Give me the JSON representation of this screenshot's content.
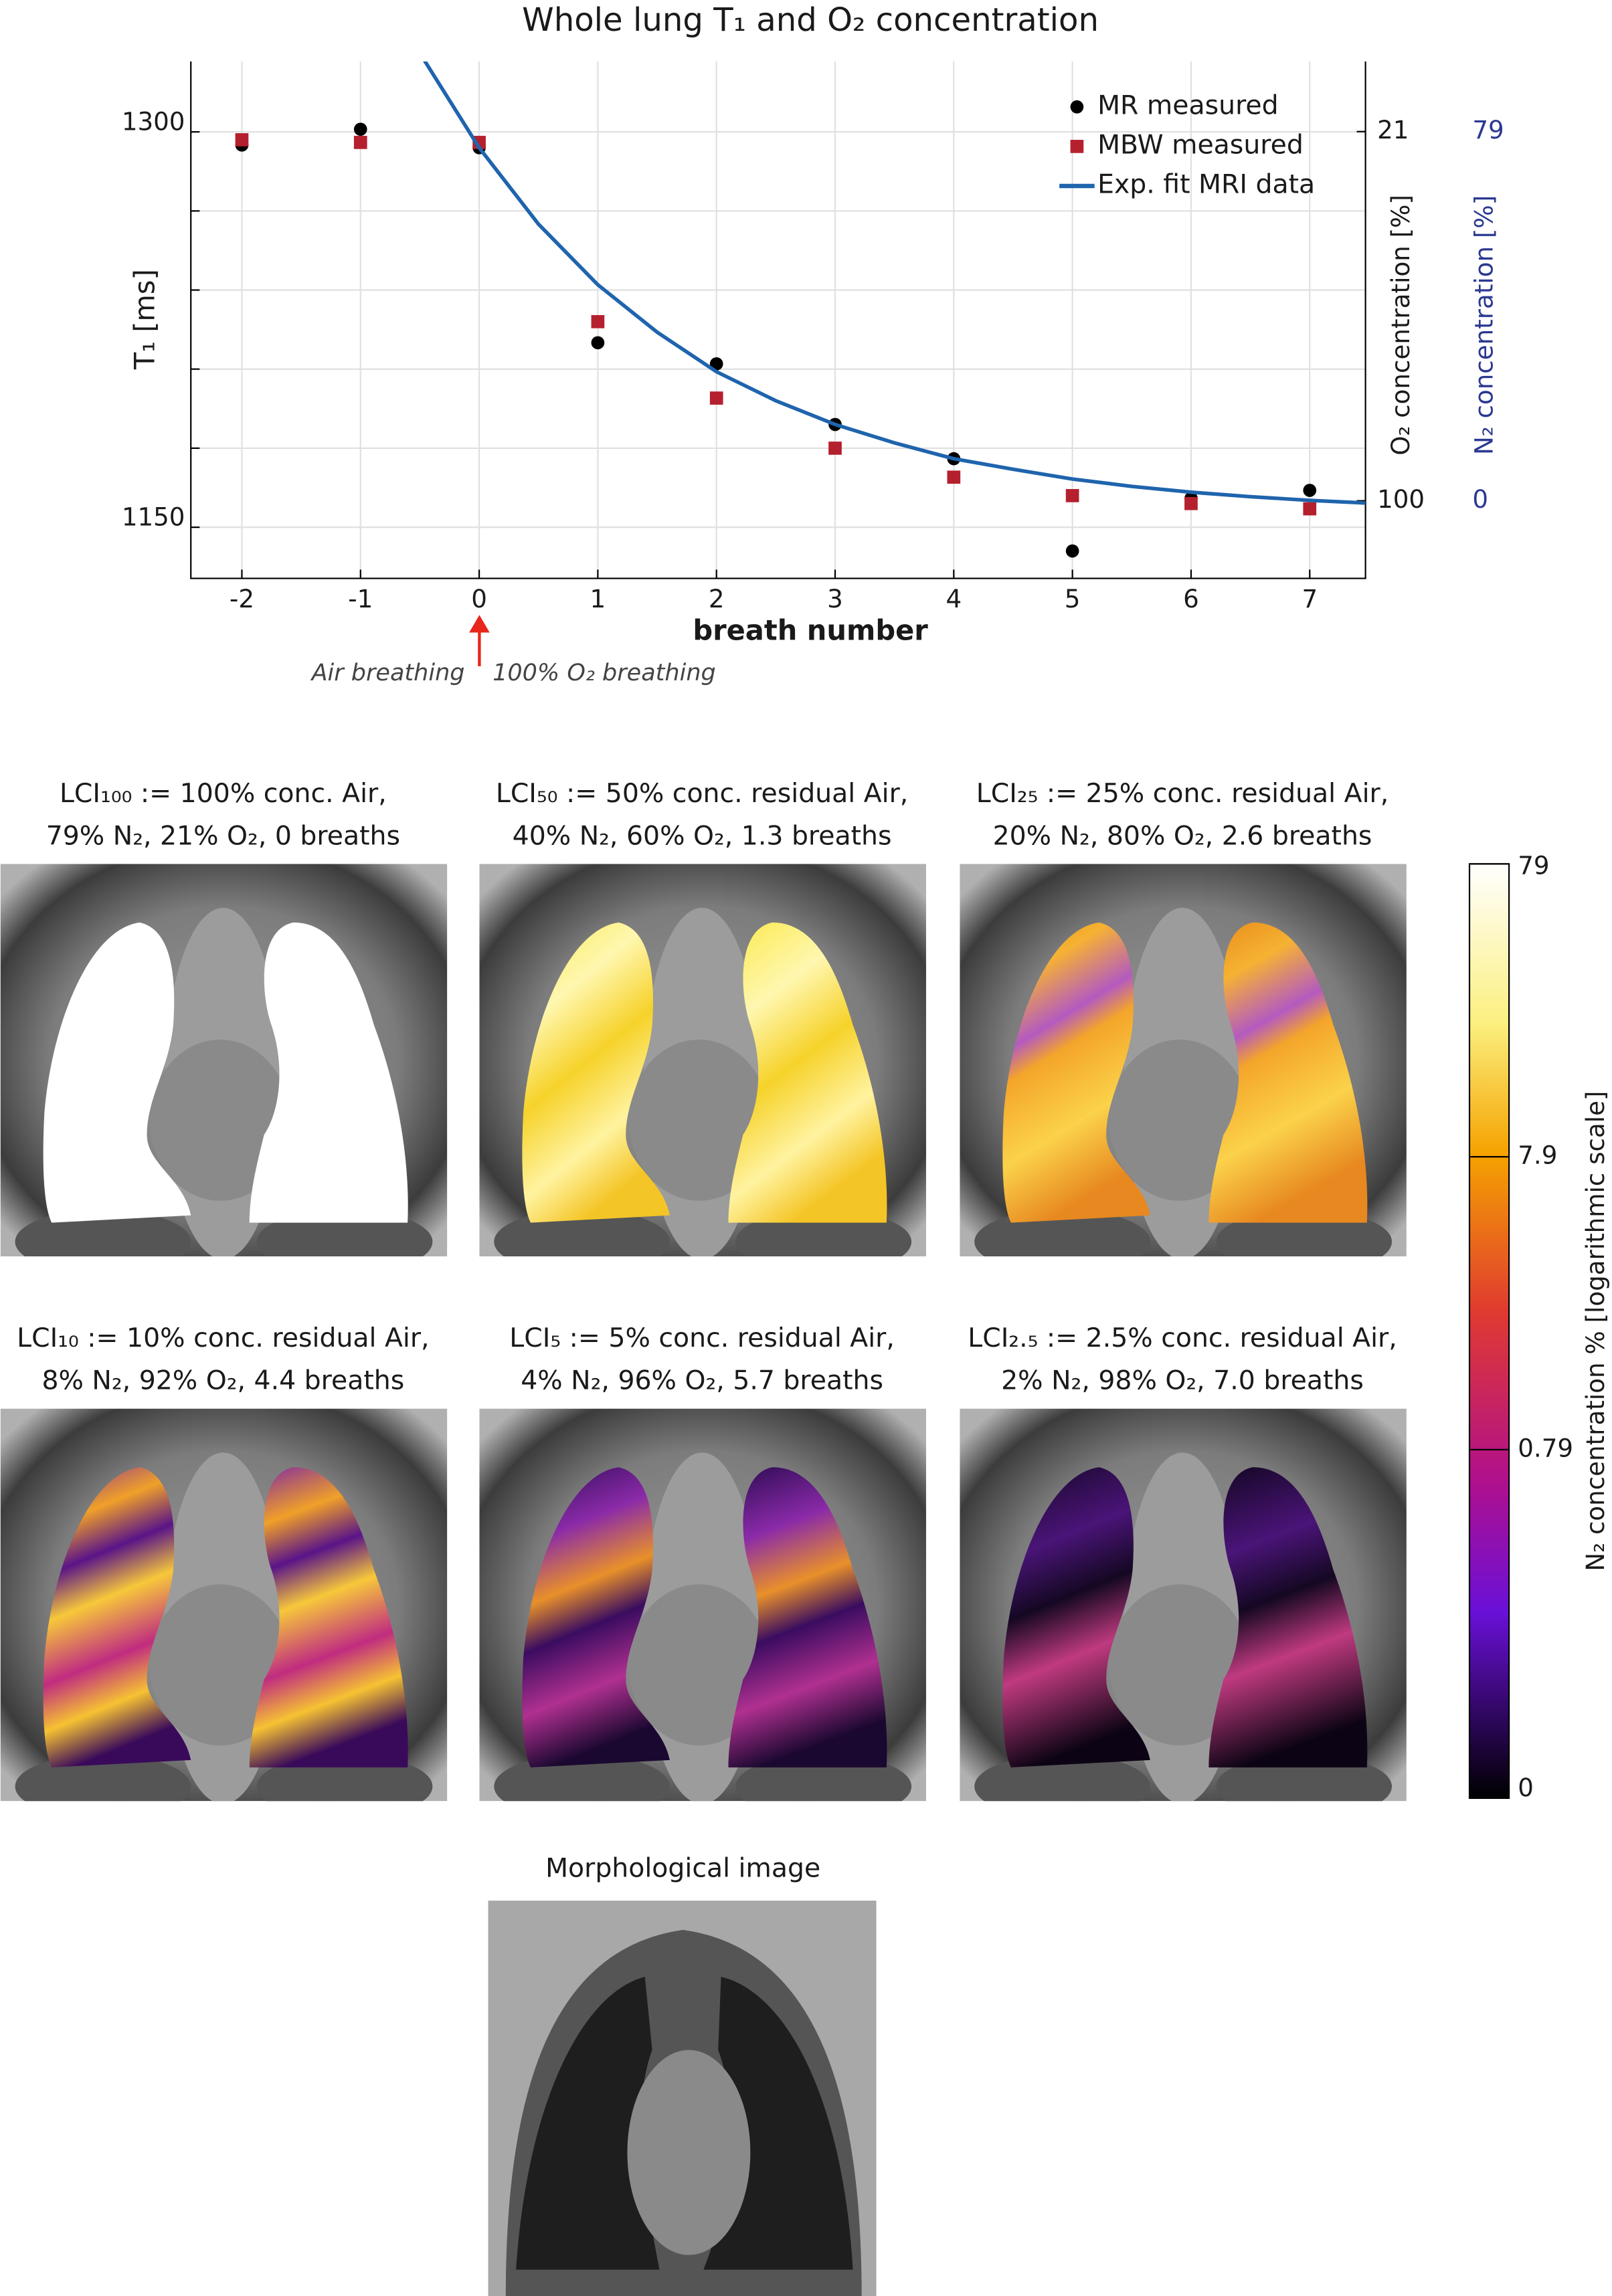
{
  "chart_data": {
    "type": "scatter",
    "title": "Whole lung T₁ and  O₂ concentration",
    "xlabel": "breath number",
    "ylabel": "T₁ [ms]",
    "xlim": [
      -2.43,
      7.47
    ],
    "xticks": [
      -2,
      -1,
      0,
      1,
      2,
      3,
      4,
      5,
      6,
      7
    ],
    "ylim": [
      1130.6,
      1326.7
    ],
    "yticks": [
      1150,
      1300
    ],
    "minor_yticks": [
      1180,
      1210,
      1240,
      1270
    ],
    "y2label": "O₂ concentration [%]",
    "y2lim": [
      116.6,
      6
    ],
    "y2ticks": [
      21,
      100
    ],
    "y3label": "N₂ concentration [%]",
    "y3lim": [
      -16.6,
      94
    ],
    "y3ticks": [
      79,
      0
    ],
    "grid": true,
    "legend": "upper right",
    "series": [
      {
        "name": "MR measured",
        "color": "#000000",
        "marker": "circle",
        "x": [
          -2,
          -1,
          0,
          1,
          2,
          3,
          4,
          5,
          6,
          7
        ],
        "values": [
          1295,
          1301,
          1294,
          1220,
          1212,
          1189,
          1176,
          1141,
          1161,
          1164
        ]
      },
      {
        "name": "MBW measured",
        "color": "#b5202e",
        "marker": "square",
        "x": [
          -2,
          -1,
          0,
          1,
          2,
          3,
          4,
          5,
          6,
          7
        ],
        "values": [
          1297,
          1296,
          1296,
          1228,
          1199,
          1180,
          1169,
          1162,
          1159,
          1157
        ]
      },
      {
        "name": "Exp. fit MRI data",
        "color": "#1f64ad",
        "marker": "line",
        "x": [
          -0.46,
          0,
          0.5,
          1,
          1.5,
          2,
          2.5,
          3,
          3.5,
          4,
          4.5,
          5,
          5.5,
          6,
          6.5,
          7,
          7.47
        ],
        "values": [
          1327,
          1294,
          1265,
          1242,
          1224,
          1209,
          1198,
          1189,
          1182,
          1176,
          1172,
          1168.3,
          1165.5,
          1163.3,
          1161.6,
          1160.2,
          1159.2
        ]
      }
    ],
    "annotations": [
      "Air breathing",
      "100% O₂ breathing"
    ]
  },
  "panels": [
    {
      "title": "LCI₁₀₀ := 100% conc. Air,",
      "subtitle": "79% N₂, 21% O₂, 0 breaths"
    },
    {
      "title": "LCI₅₀ := 50% conc. residual Air,",
      "subtitle": "40% N₂, 60% O₂, 1.3 breaths"
    },
    {
      "title": "LCI₂₅ := 25% conc. residual Air,",
      "subtitle": "20% N₂, 80% O₂, 2.6 breaths"
    },
    {
      "title": "LCI₁₀ := 10% conc. residual Air,",
      "subtitle": "8% N₂, 92% O₂, 4.4 breaths"
    },
    {
      "title": "LCI₅ := 5% conc. residual Air,",
      "subtitle": "4% N₂, 96% O₂, 5.7 breaths"
    },
    {
      "title": "LCI₂.₅ := 2.5% conc. residual Air,",
      "subtitle": "2% N₂, 98% O₂, 7.0 breaths"
    }
  ],
  "colorbar": {
    "label": "N₂ concentration % [logarithmic scale]",
    "log": true,
    "lim": [
      0.051,
      79
    ],
    "ticks": [
      79,
      7.9,
      0.79,
      {
        "value": 0.051,
        "label": "0"
      }
    ]
  },
  "morphological": {
    "title": "Morphological image"
  }
}
